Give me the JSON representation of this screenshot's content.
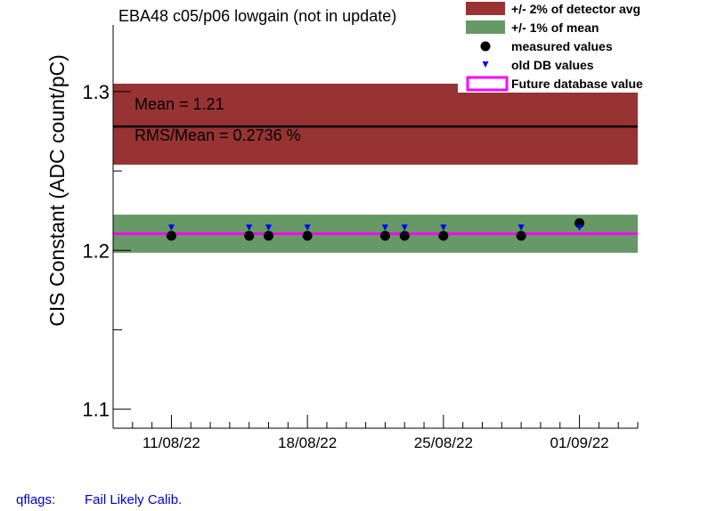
{
  "chart_data": {
    "type": "scatter",
    "title": "EBA48 c05/p06 lowgain (not in update)",
    "ylabel": "CIS Constant (ADC count/pC)",
    "xlabel": "",
    "x_tick_labels": [
      "11/08/22",
      "18/08/22",
      "25/08/22",
      "01/09/22"
    ],
    "x_tick_dates": [
      "2022-08-11",
      "2022-08-18",
      "2022-08-25",
      "2022-09-01"
    ],
    "y_tick_labels": [
      "1.1",
      "1.2",
      "1.3"
    ],
    "xlim": [
      "2022-08-08",
      "2022-09-04"
    ],
    "ylim": [
      1.088,
      1.342
    ],
    "grid": false,
    "legend_position": "top-right",
    "series": [
      {
        "name": "measured values",
        "marker": "circle",
        "color": "#000000",
        "points": [
          {
            "x": "2022-08-11",
            "y": 1.21
          },
          {
            "x": "2022-08-15",
            "y": 1.21
          },
          {
            "x": "2022-08-16",
            "y": 1.21
          },
          {
            "x": "2022-08-18",
            "y": 1.21
          },
          {
            "x": "2022-08-22",
            "y": 1.21
          },
          {
            "x": "2022-08-23",
            "y": 1.21
          },
          {
            "x": "2022-08-25",
            "y": 1.21
          },
          {
            "x": "2022-08-29",
            "y": 1.21
          },
          {
            "x": "2022-09-01",
            "y": 1.218
          }
        ]
      },
      {
        "name": "old DB values",
        "marker": "triangle-down",
        "color": "#0000ff",
        "points": [
          {
            "x": "2022-08-11",
            "y": 1.214
          },
          {
            "x": "2022-08-15",
            "y": 1.214
          },
          {
            "x": "2022-08-16",
            "y": 1.214
          },
          {
            "x": "2022-08-18",
            "y": 1.214
          },
          {
            "x": "2022-08-22",
            "y": 1.214
          },
          {
            "x": "2022-08-23",
            "y": 1.214
          },
          {
            "x": "2022-08-25",
            "y": 1.214
          },
          {
            "x": "2022-08-29",
            "y": 1.214
          },
          {
            "x": "2022-09-01",
            "y": 1.214
          }
        ]
      }
    ],
    "bands": [
      {
        "name": "+/- 2% of detector avg",
        "y_low": 1.254,
        "y_high": 1.305,
        "color": "#983333"
      },
      {
        "name": "+/- 1% of mean",
        "y_low": 1.1985,
        "y_high": 1.2225,
        "color": "#669966"
      }
    ],
    "lines": [
      {
        "name": "detector avg",
        "y": 1.278,
        "color": "#000000"
      },
      {
        "name": "Future database value",
        "y": 1.2105,
        "color": "#ff00ff"
      }
    ],
    "annotations": {
      "mean": "Mean = 1.21",
      "rms": "RMS/Mean = 0.2736 %"
    },
    "legend": [
      {
        "label": "+/- 2% of detector avg",
        "kind": "box",
        "color": "#983333"
      },
      {
        "label": "+/- 1% of mean",
        "kind": "box",
        "color": "#669966"
      },
      {
        "label": "measured values",
        "kind": "circle",
        "color": "#000000"
      },
      {
        "label": "old DB values",
        "kind": "triangle",
        "color": "#0000ff"
      },
      {
        "label": "Future database value",
        "kind": "outline",
        "color": "#ff00ff"
      }
    ]
  },
  "footer": {
    "qflags_label": "qflags:",
    "qflags_value": "Fail Likely Calib."
  }
}
